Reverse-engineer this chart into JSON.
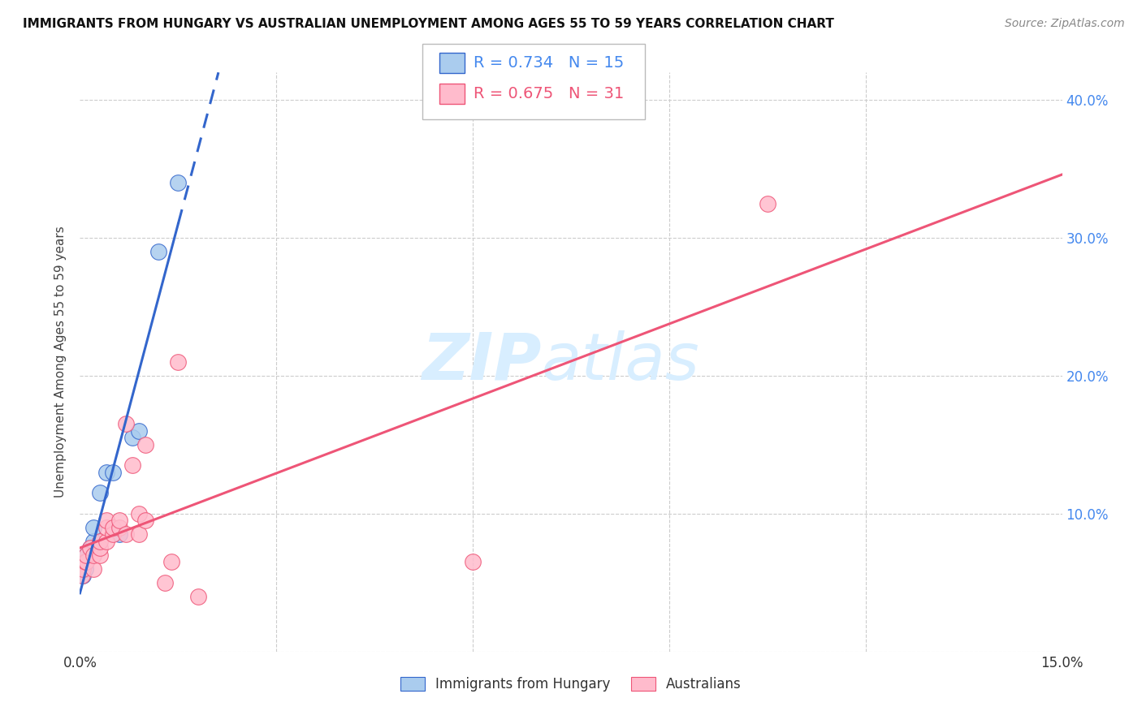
{
  "title": "IMMIGRANTS FROM HUNGARY VS AUSTRALIAN UNEMPLOYMENT AMONG AGES 55 TO 59 YEARS CORRELATION CHART",
  "source": "Source: ZipAtlas.com",
  "ylabel": "Unemployment Among Ages 55 to 59 years",
  "xlim": [
    0.0,
    0.15
  ],
  "ylim": [
    0.0,
    0.42
  ],
  "xticks": [
    0.0,
    0.03,
    0.06,
    0.09,
    0.12,
    0.15
  ],
  "xticklabels": [
    "0.0%",
    "",
    "",
    "",
    "",
    "15.0%"
  ],
  "yticks": [
    0.0,
    0.1,
    0.2,
    0.3,
    0.4
  ],
  "yticklabels": [
    "",
    "10.0%",
    "20.0%",
    "30.0%",
    "40.0%"
  ],
  "watermark": "ZIPatlas",
  "blue_scatter_x": [
    0.0005,
    0.0008,
    0.001,
    0.001,
    0.0015,
    0.002,
    0.002,
    0.003,
    0.004,
    0.005,
    0.006,
    0.008,
    0.009,
    0.012,
    0.015
  ],
  "blue_scatter_y": [
    0.055,
    0.06,
    0.065,
    0.07,
    0.075,
    0.08,
    0.09,
    0.115,
    0.13,
    0.13,
    0.085,
    0.155,
    0.16,
    0.29,
    0.34
  ],
  "pink_scatter_x": [
    0.0003,
    0.0005,
    0.0008,
    0.001,
    0.001,
    0.0015,
    0.002,
    0.002,
    0.003,
    0.003,
    0.003,
    0.004,
    0.004,
    0.004,
    0.005,
    0.005,
    0.006,
    0.006,
    0.007,
    0.007,
    0.008,
    0.009,
    0.009,
    0.01,
    0.01,
    0.013,
    0.014,
    0.015,
    0.018,
    0.06,
    0.105
  ],
  "pink_scatter_y": [
    0.055,
    0.06,
    0.065,
    0.065,
    0.07,
    0.075,
    0.06,
    0.07,
    0.07,
    0.075,
    0.08,
    0.08,
    0.09,
    0.095,
    0.085,
    0.09,
    0.09,
    0.095,
    0.085,
    0.165,
    0.135,
    0.085,
    0.1,
    0.095,
    0.15,
    0.05,
    0.065,
    0.21,
    0.04,
    0.065,
    0.325
  ],
  "blue_line_color": "#3366CC",
  "pink_line_color": "#EE5577",
  "blue_dot_color": "#AACCEE",
  "pink_dot_color": "#FFBBCC",
  "grid_color": "#CCCCCC",
  "right_tick_color": "#4488EE",
  "title_color": "#111111",
  "watermark_color": "#D8EEFF",
  "blue_legend_text": "R = 0.734   N = 15",
  "pink_legend_text": "R = 0.675   N = 31",
  "legend_blue_color": "#4488EE",
  "legend_pink_color": "#EE5577"
}
